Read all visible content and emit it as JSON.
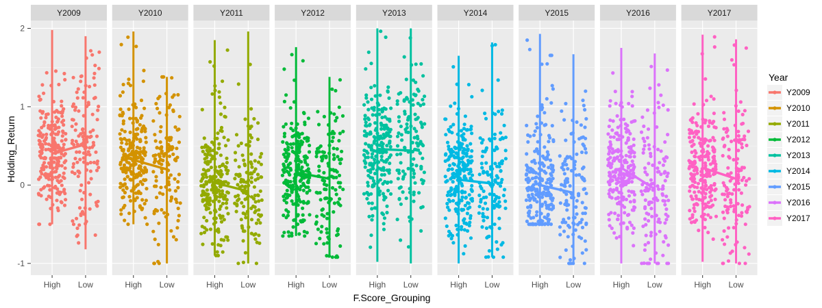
{
  "chart_data": {
    "type": "scatter",
    "subtype": "faceted jittered strip plot with mean line per facet",
    "xlabel": "F.Score_Grouping",
    "ylabel": "Holding_Return",
    "categories": [
      "High",
      "Low"
    ],
    "ylim": [
      -1.15,
      2.1
    ],
    "yticks": [
      -1,
      0,
      1,
      2
    ],
    "grid": true,
    "background": "#EBEBEB",
    "legend": {
      "title": "Year",
      "placement": "right"
    },
    "facets": [
      {
        "name": "Y2009",
        "color": "#F8766D",
        "mean": {
          "High": 0.4,
          "Low": 0.52
        },
        "range": {
          "High": [
            -0.5,
            1.98
          ],
          "Low": [
            -0.82,
            1.9
          ]
        }
      },
      {
        "name": "Y2010",
        "color": "#D39200",
        "mean": {
          "High": 0.32,
          "Low": 0.2
        },
        "range": {
          "High": [
            -0.5,
            1.96
          ],
          "Low": [
            -1.0,
            1.38
          ]
        }
      },
      {
        "name": "Y2011",
        "color": "#93AA00",
        "mean": {
          "High": 0.03,
          "Low": -0.08
        },
        "range": {
          "High": [
            -0.9,
            1.85
          ],
          "Low": [
            -1.0,
            1.96
          ]
        }
      },
      {
        "name": "Y2012",
        "color": "#00BA38",
        "mean": {
          "High": 0.16,
          "Low": 0.08
        },
        "range": {
          "High": [
            -0.65,
            1.76
          ],
          "Low": [
            -0.92,
            1.38
          ]
        }
      },
      {
        "name": "Y2013",
        "color": "#00C19F",
        "mean": {
          "High": 0.46,
          "Low": 0.44
        },
        "range": {
          "High": [
            -0.98,
            2.0
          ],
          "Low": [
            -1.0,
            2.0
          ]
        }
      },
      {
        "name": "Y2014",
        "color": "#00B9E3",
        "mean": {
          "High": 0.07,
          "Low": 0.02
        },
        "range": {
          "High": [
            -1.0,
            1.65
          ],
          "Low": [
            -0.92,
            1.82
          ]
        }
      },
      {
        "name": "Y2015",
        "color": "#619CFF",
        "mean": {
          "High": 0.0,
          "Low": -0.1
        },
        "range": {
          "High": [
            -0.5,
            1.93
          ],
          "Low": [
            -1.0,
            1.67
          ]
        }
      },
      {
        "name": "Y2016",
        "color": "#DB72FB",
        "mean": {
          "High": 0.22,
          "Low": -0.05
        },
        "range": {
          "High": [
            -1.0,
            1.75
          ],
          "Low": [
            -1.0,
            1.68
          ]
        }
      },
      {
        "name": "Y2017",
        "color": "#FF61C3",
        "mean": {
          "High": 0.22,
          "Low": 0.08
        },
        "range": {
          "High": [
            -0.98,
            1.92
          ],
          "Low": [
            -1.0,
            1.86
          ]
        }
      }
    ]
  }
}
